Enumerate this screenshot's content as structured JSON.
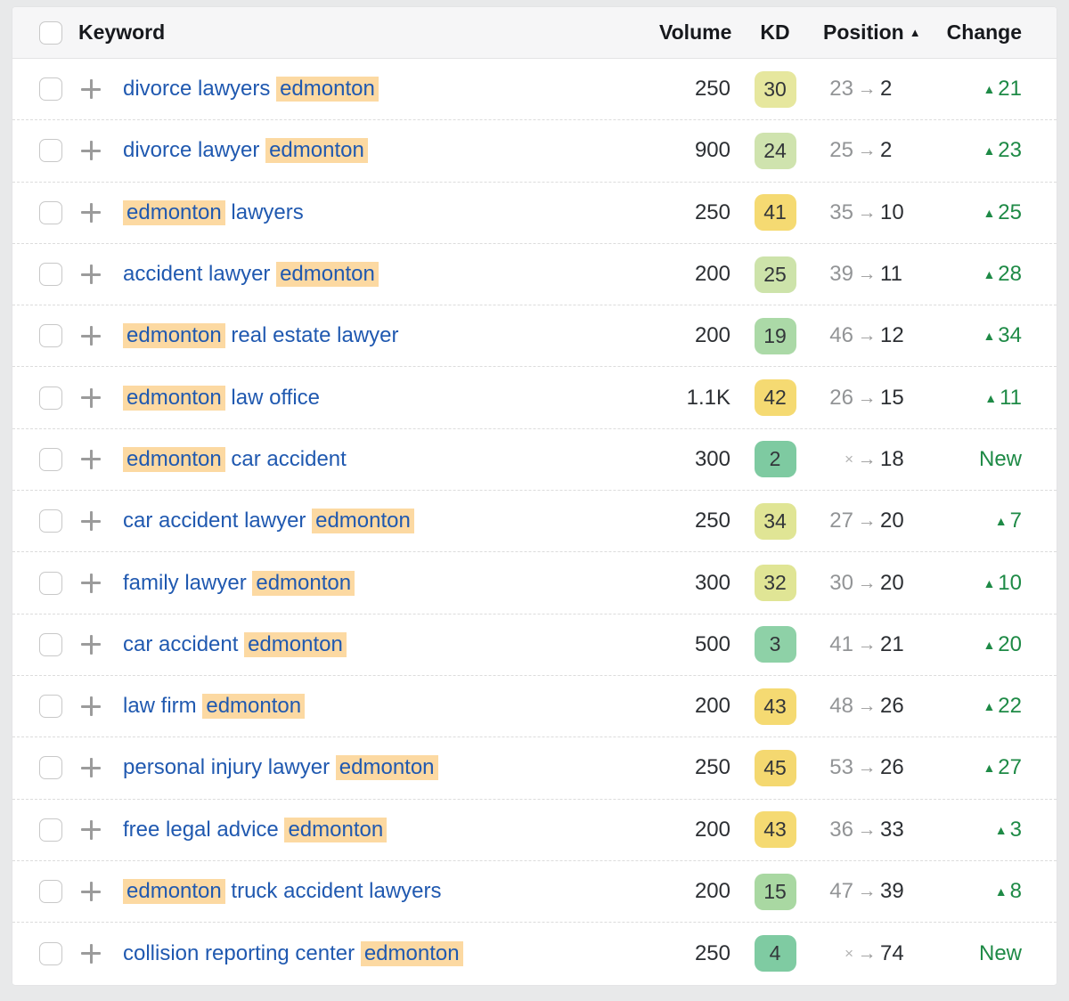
{
  "header": {
    "keyword": "Keyword",
    "volume": "Volume",
    "kd": "KD",
    "position": "Position",
    "change": "Change",
    "sort_icon": "▲"
  },
  "icons": {
    "plus": "+",
    "pos_arrow": "→",
    "up_triangle": "▲",
    "not_ranked": "×"
  },
  "colors": {
    "keyword_link": "#2059b0",
    "highlight": "#fcd9a2",
    "change_green": "#1e8a46",
    "pos_old": "#929496",
    "pos_new": "#2c2f33"
  },
  "rows": [
    {
      "parts": [
        {
          "t": "divorce lawyers ",
          "hl": false
        },
        {
          "t": "edmonton",
          "hl": true
        }
      ],
      "volume": "250",
      "kd": "30",
      "kd_color": "#e6e79e",
      "pos_from": "23",
      "pos_to": "2",
      "not_ranked": false,
      "change": "21",
      "new": false
    },
    {
      "parts": [
        {
          "t": "divorce lawyer ",
          "hl": false
        },
        {
          "t": "edmonton",
          "hl": true
        }
      ],
      "volume": "900",
      "kd": "24",
      "kd_color": "#cfe3ae",
      "pos_from": "25",
      "pos_to": "2",
      "not_ranked": false,
      "change": "23",
      "new": false
    },
    {
      "parts": [
        {
          "t": "edmonton",
          "hl": true
        },
        {
          "t": " lawyers",
          "hl": false
        }
      ],
      "volume": "250",
      "kd": "41",
      "kd_color": "#f5da72",
      "pos_from": "35",
      "pos_to": "10",
      "not_ranked": false,
      "change": "25",
      "new": false
    },
    {
      "parts": [
        {
          "t": "accident lawyer ",
          "hl": false
        },
        {
          "t": "edmonton",
          "hl": true
        }
      ],
      "volume": "200",
      "kd": "25",
      "kd_color": "#cde3aa",
      "pos_from": "39",
      "pos_to": "11",
      "not_ranked": false,
      "change": "28",
      "new": false
    },
    {
      "parts": [
        {
          "t": "edmonton",
          "hl": true
        },
        {
          "t": " real estate lawyer",
          "hl": false
        }
      ],
      "volume": "200",
      "kd": "19",
      "kd_color": "#abd9a7",
      "pos_from": "46",
      "pos_to": "12",
      "not_ranked": false,
      "change": "34",
      "new": false
    },
    {
      "parts": [
        {
          "t": "edmonton",
          "hl": true
        },
        {
          "t": " law office",
          "hl": false
        }
      ],
      "volume": "1.1K",
      "kd": "42",
      "kd_color": "#f5da72",
      "pos_from": "26",
      "pos_to": "15",
      "not_ranked": false,
      "change": "11",
      "new": false
    },
    {
      "parts": [
        {
          "t": "edmonton",
          "hl": true
        },
        {
          "t": " car accident",
          "hl": false
        }
      ],
      "volume": "300",
      "kd": "2",
      "kd_color": "#7ecaa1",
      "pos_from": "",
      "pos_to": "18",
      "not_ranked": true,
      "change": "New",
      "new": true
    },
    {
      "parts": [
        {
          "t": "car accident lawyer ",
          "hl": false
        },
        {
          "t": "edmonton",
          "hl": true
        }
      ],
      "volume": "250",
      "kd": "34",
      "kd_color": "#e0e595",
      "pos_from": "27",
      "pos_to": "20",
      "not_ranked": false,
      "change": "7",
      "new": false
    },
    {
      "parts": [
        {
          "t": "family lawyer ",
          "hl": false
        },
        {
          "t": "edmonton",
          "hl": true
        }
      ],
      "volume": "300",
      "kd": "32",
      "kd_color": "#e0e595",
      "pos_from": "30",
      "pos_to": "20",
      "not_ranked": false,
      "change": "10",
      "new": false
    },
    {
      "parts": [
        {
          "t": "car accident ",
          "hl": false
        },
        {
          "t": "edmonton",
          "hl": true
        }
      ],
      "volume": "500",
      "kd": "3",
      "kd_color": "#8ed1a7",
      "pos_from": "41",
      "pos_to": "21",
      "not_ranked": false,
      "change": "20",
      "new": false
    },
    {
      "parts": [
        {
          "t": "law firm ",
          "hl": false
        },
        {
          "t": "edmonton",
          "hl": true
        }
      ],
      "volume": "200",
      "kd": "43",
      "kd_color": "#f5da72",
      "pos_from": "48",
      "pos_to": "26",
      "not_ranked": false,
      "change": "22",
      "new": false
    },
    {
      "parts": [
        {
          "t": "personal injury lawyer ",
          "hl": false
        },
        {
          "t": "edmonton",
          "hl": true
        }
      ],
      "volume": "250",
      "kd": "45",
      "kd_color": "#f4d870",
      "pos_from": "53",
      "pos_to": "26",
      "not_ranked": false,
      "change": "27",
      "new": false
    },
    {
      "parts": [
        {
          "t": "free legal advice ",
          "hl": false
        },
        {
          "t": "edmonton",
          "hl": true
        }
      ],
      "volume": "200",
      "kd": "43",
      "kd_color": "#f5da72",
      "pos_from": "36",
      "pos_to": "33",
      "not_ranked": false,
      "change": "3",
      "new": false
    },
    {
      "parts": [
        {
          "t": "edmonton",
          "hl": true
        },
        {
          "t": " truck accident lawyers",
          "hl": false
        }
      ],
      "volume": "200",
      "kd": "15",
      "kd_color": "#a9d8a2",
      "pos_from": "47",
      "pos_to": "39",
      "not_ranked": false,
      "change": "8",
      "new": false
    },
    {
      "parts": [
        {
          "t": "collision reporting center ",
          "hl": false
        },
        {
          "t": "edmonton",
          "hl": true
        }
      ],
      "volume": "250",
      "kd": "4",
      "kd_color": "#7fcba2",
      "pos_from": "",
      "pos_to": "74",
      "not_ranked": true,
      "change": "New",
      "new": true
    }
  ]
}
